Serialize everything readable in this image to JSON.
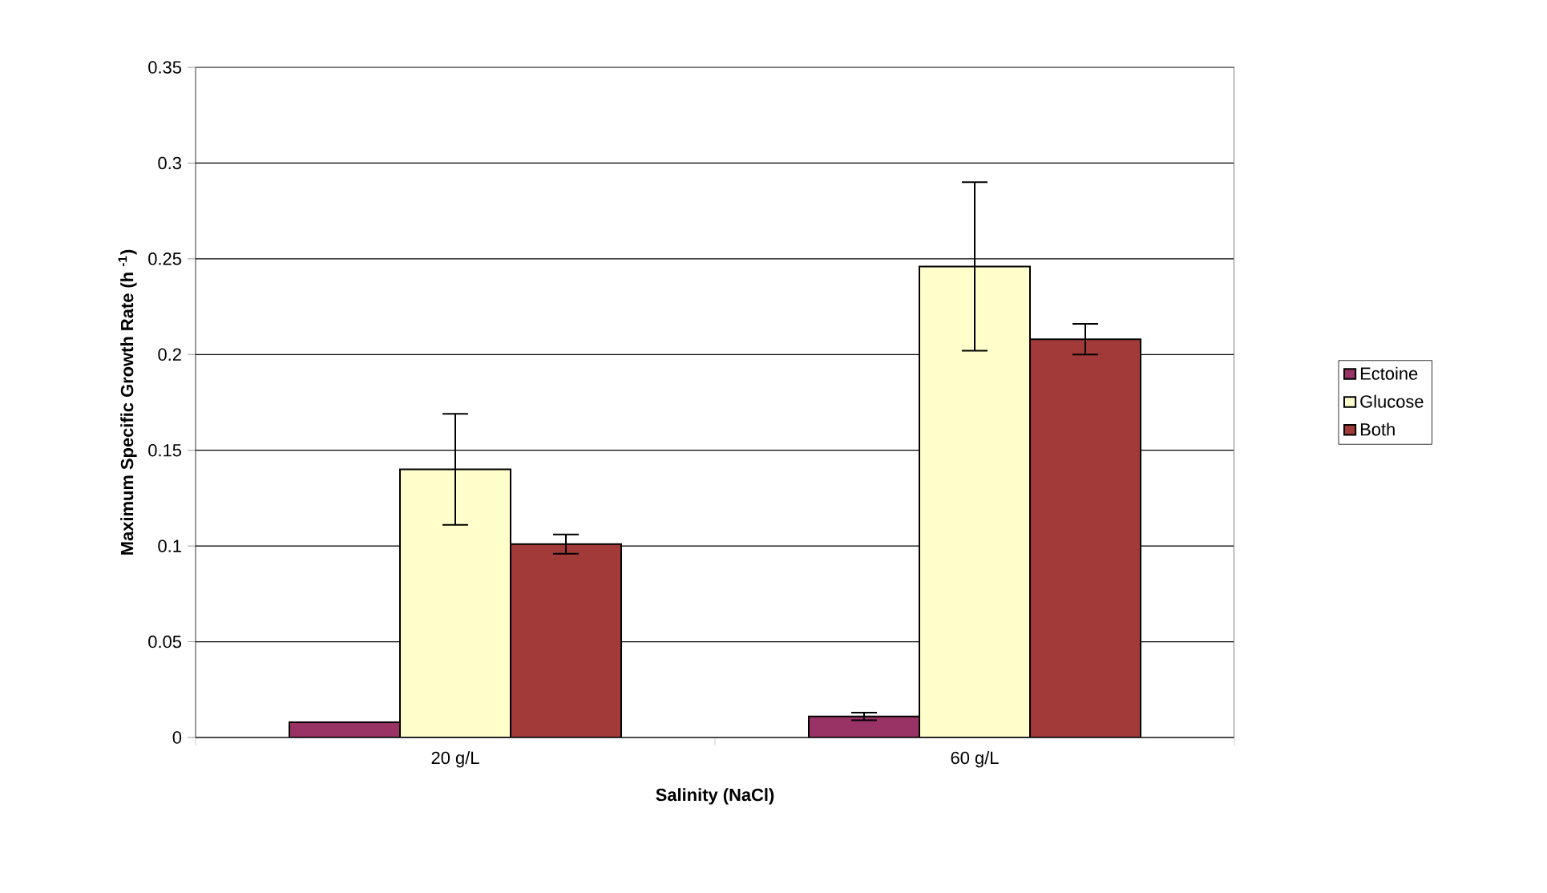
{
  "chart_data": {
    "type": "bar",
    "xlabel": "Salinity (NaCl)",
    "ylabel": "Maximum Specific Growth Rate (h $^{-1}$)",
    "categories": [
      "20 g/L",
      "60 g/L"
    ],
    "series": [
      {
        "name": "Ectoine",
        "color": "#993366",
        "values": [
          0.008,
          0.011
        ],
        "errors": [
          null,
          0.002
        ]
      },
      {
        "name": "Glucose",
        "color": "#ffffcc",
        "values": [
          0.14,
          0.246
        ],
        "errors": [
          0.029,
          0.044
        ]
      },
      {
        "name": "Both",
        "color": "#a33a3a",
        "values": [
          0.101,
          0.208
        ],
        "errors": [
          0.005,
          0.008
        ]
      }
    ],
    "ylim": [
      0,
      0.35
    ],
    "yticks": [
      0,
      0.05,
      0.1,
      0.15,
      0.2,
      0.25,
      0.3,
      0.35
    ],
    "grid": "y",
    "legend": "right"
  }
}
